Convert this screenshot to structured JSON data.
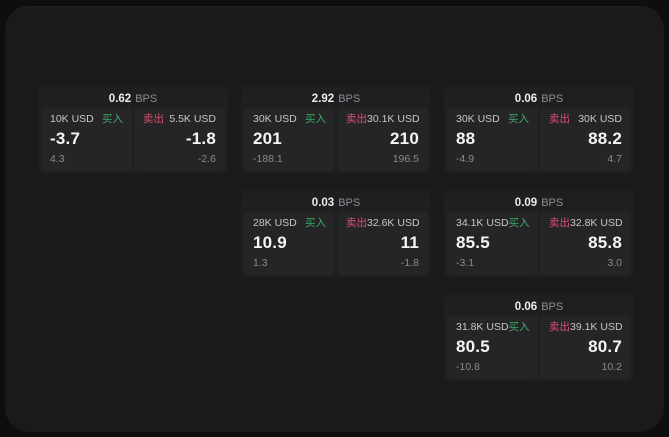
{
  "labels": {
    "buy": "买入",
    "sell": "卖出",
    "bps_unit": "BPS"
  },
  "colors": {
    "buy_green": "#3fa968",
    "sell_red": "#d8506b",
    "panel_background": "#1a1a1b",
    "card_background": "#1f1f21",
    "tile_background": "#252528"
  },
  "cards": [
    {
      "bps_value": "0.62",
      "buy": {
        "size": "10K USD",
        "value": "-3.7",
        "change": "4.3"
      },
      "sell": {
        "size": "5.5K USD",
        "value": "-1.8",
        "change": "-2.6"
      }
    },
    {
      "bps_value": "2.92",
      "buy": {
        "size": "30K USD",
        "value": "201",
        "change": "-188.1"
      },
      "sell": {
        "size": "30.1K USD",
        "value": "210",
        "change": "196.5"
      }
    },
    {
      "bps_value": "0.06",
      "buy": {
        "size": "30K USD",
        "value": "88",
        "change": "-4.9"
      },
      "sell": {
        "size": "30K USD",
        "value": "88.2",
        "change": "4.7"
      }
    },
    {
      "bps_value": "0.03",
      "buy": {
        "size": "28K USD",
        "value": "10.9",
        "change": "1.3"
      },
      "sell": {
        "size": "32.6K USD",
        "value": "11",
        "change": "-1.8"
      }
    },
    {
      "bps_value": "0.09",
      "buy": {
        "size": "34.1K USD",
        "value": "85.5",
        "change": "-3.1"
      },
      "sell": {
        "size": "32.8K USD",
        "value": "85.8",
        "change": "3.0"
      }
    },
    {
      "bps_value": "0.06",
      "buy": {
        "size": "31.8K USD",
        "value": "80.5",
        "change": "-10.8"
      },
      "sell": {
        "size": "39.1K USD",
        "value": "80.7",
        "change": "10.2"
      }
    }
  ]
}
